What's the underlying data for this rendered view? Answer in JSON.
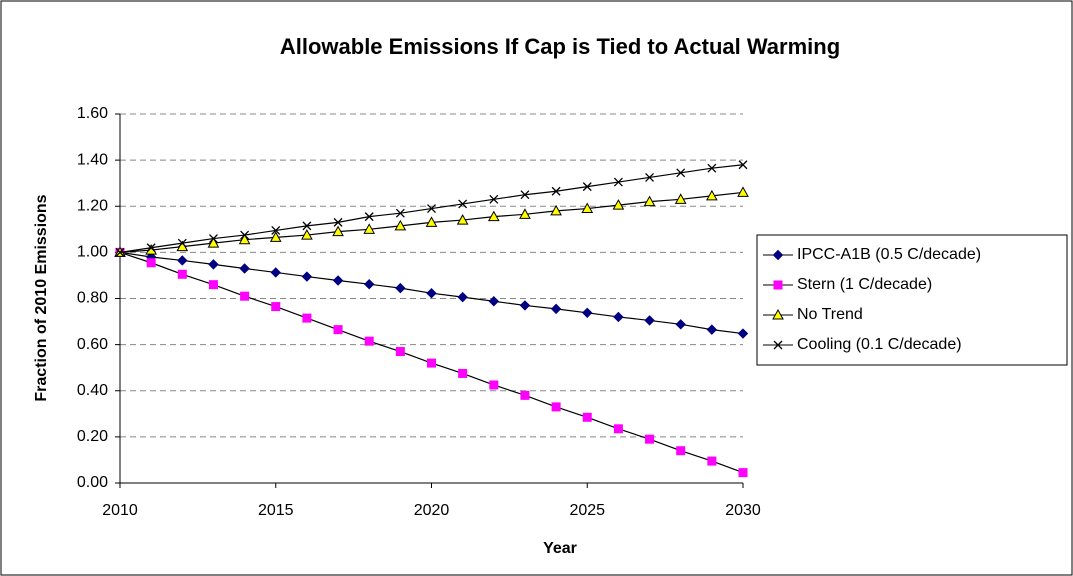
{
  "chart_data": {
    "type": "line",
    "title": "Allowable Emissions If Cap is Tied to Actual Warming",
    "x_label": "Year",
    "y_label": "Fraction of 2010 Emissions",
    "x": [
      2010,
      2011,
      2012,
      2013,
      2014,
      2015,
      2016,
      2017,
      2018,
      2019,
      2020,
      2021,
      2022,
      2023,
      2024,
      2025,
      2026,
      2027,
      2028,
      2029,
      2030
    ],
    "xlim": [
      2010,
      2030
    ],
    "xticks": [
      2010,
      2015,
      2020,
      2025,
      2030
    ],
    "ylim": [
      0,
      1.6
    ],
    "yticks": [
      {
        "value": 0,
        "label": "0.00"
      },
      {
        "value": 0.2,
        "label": "0.20"
      },
      {
        "value": 0.4,
        "label": "0.40"
      },
      {
        "value": 0.6,
        "label": "0.60"
      },
      {
        "value": 0.8,
        "label": "0.80"
      },
      {
        "value": 1.0,
        "label": "1.00"
      },
      {
        "value": 1.2,
        "label": "1.20"
      },
      {
        "value": 1.4,
        "label": "1.40"
      },
      {
        "value": 1.6,
        "label": "1.60"
      }
    ],
    "grid": true,
    "legend": "right",
    "line_color": "#000000",
    "series": [
      {
        "name": "IPCC-A1B (0.5 C/decade)",
        "color": "#000080",
        "marker": "diamond",
        "values": [
          1.0,
          0.98,
          0.965,
          0.948,
          0.93,
          0.913,
          0.895,
          0.878,
          0.862,
          0.845,
          0.823,
          0.806,
          0.788,
          0.77,
          0.755,
          0.738,
          0.72,
          0.705,
          0.688,
          0.665,
          0.648
        ]
      },
      {
        "name": "Stern (1 C/decade)",
        "color": "#ff00ff",
        "marker": "square",
        "values": [
          1.0,
          0.955,
          0.905,
          0.86,
          0.81,
          0.765,
          0.715,
          0.665,
          0.615,
          0.57,
          0.52,
          0.475,
          0.425,
          0.38,
          0.33,
          0.285,
          0.235,
          0.19,
          0.14,
          0.095,
          0.045
        ]
      },
      {
        "name": "No Trend",
        "color": "#ffff00",
        "marker": "triangle",
        "values": [
          1.0,
          1.01,
          1.025,
          1.04,
          1.055,
          1.065,
          1.075,
          1.09,
          1.1,
          1.115,
          1.13,
          1.14,
          1.155,
          1.165,
          1.18,
          1.19,
          1.205,
          1.22,
          1.23,
          1.245,
          1.26
        ]
      },
      {
        "name": "Cooling (0.1 C/decade)",
        "color": "#000000",
        "marker": "x",
        "values": [
          1.0,
          1.02,
          1.04,
          1.06,
          1.075,
          1.095,
          1.115,
          1.13,
          1.155,
          1.17,
          1.19,
          1.21,
          1.23,
          1.25,
          1.265,
          1.285,
          1.305,
          1.325,
          1.345,
          1.365,
          1.38
        ]
      }
    ]
  }
}
